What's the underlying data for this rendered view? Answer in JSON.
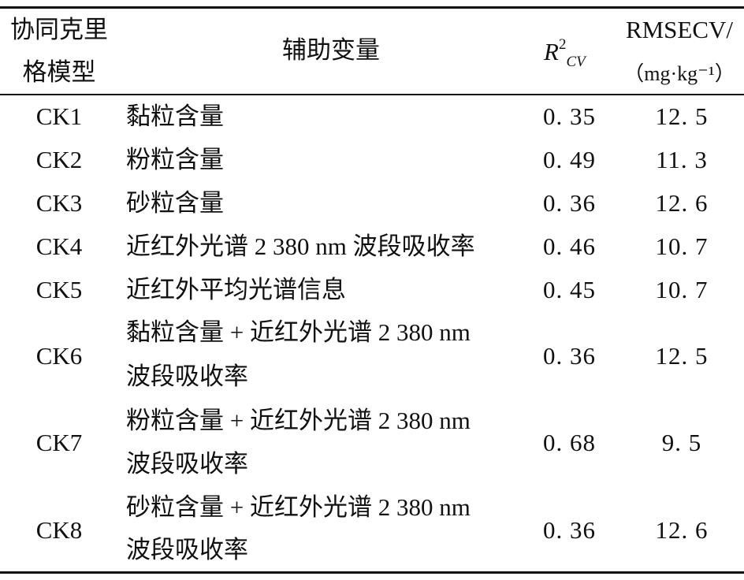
{
  "header": {
    "model_line1": "协同克里",
    "model_line2": "格模型",
    "aux_var": "辅助变量",
    "r2_base": "R",
    "r2_sup": "2",
    "r2_sub": "CV",
    "rmse_line1": "RMSECV/",
    "rmse_line2": "（mg·kg⁻¹）"
  },
  "rows": [
    {
      "model": "CK1",
      "var_line1": "黏粒含量",
      "var_line2": "",
      "r2": "0. 35",
      "rmse": "12. 5"
    },
    {
      "model": "CK2",
      "var_line1": "粉粒含量",
      "var_line2": "",
      "r2": "0. 49",
      "rmse": "11. 3"
    },
    {
      "model": "CK3",
      "var_line1": "砂粒含量",
      "var_line2": "",
      "r2": "0. 36",
      "rmse": "12. 6"
    },
    {
      "model": "CK4",
      "var_line1": "近红外光谱 2 380 nm 波段吸收率",
      "var_line2": "",
      "r2": "0. 46",
      "rmse": "10. 7"
    },
    {
      "model": "CK5",
      "var_line1": "近红外平均光谱信息",
      "var_line2": "",
      "r2": "0. 45",
      "rmse": "10. 7"
    },
    {
      "model": "CK6",
      "var_line1": "黏粒含量 + 近红外光谱 2 380 nm",
      "var_line2": "波段吸收率",
      "r2": "0. 36",
      "rmse": "12. 5"
    },
    {
      "model": "CK7",
      "var_line1": "粉粒含量 + 近红外光谱 2 380 nm",
      "var_line2": "波段吸收率",
      "r2": "0. 68",
      "rmse": "9. 5"
    },
    {
      "model": "CK8",
      "var_line1": "砂粒含量 + 近红外光谱 2 380 nm",
      "var_line2": "波段吸收率",
      "r2": "0. 36",
      "rmse": "12. 6"
    }
  ]
}
